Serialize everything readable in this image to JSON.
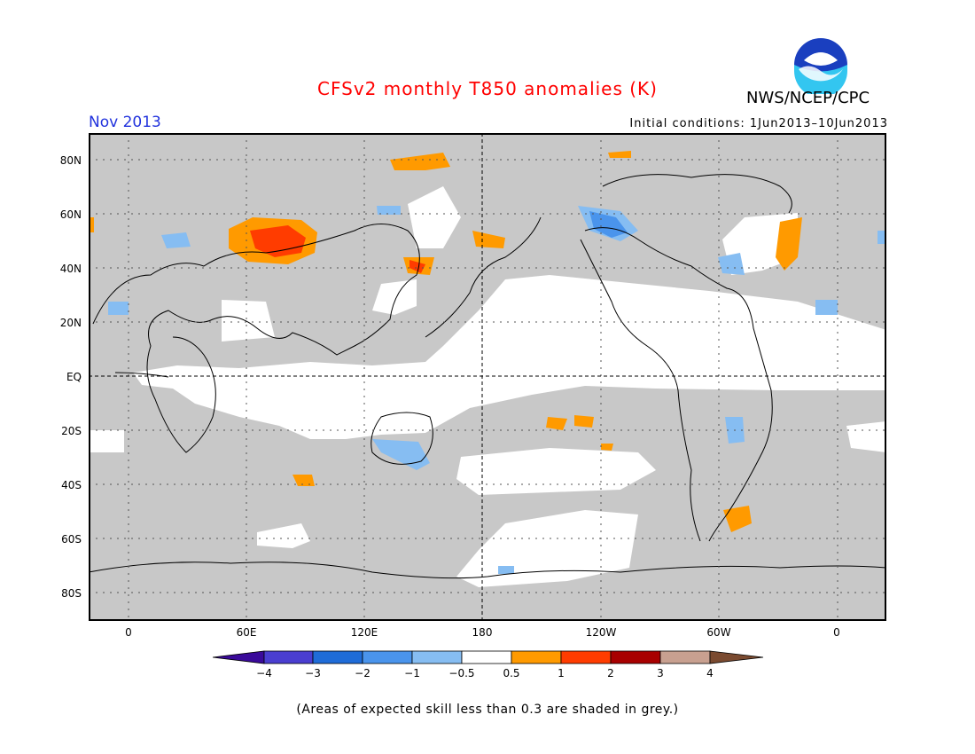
{
  "title": "CFSv2 monthly T850 anomalies (K)",
  "organization": "NWS/NCEP/CPC",
  "logo_text": "NOAA",
  "month": "Nov 2013",
  "initial_conditions": "Initial conditions: 1Jun2013–10Jun2013",
  "lat_labels": [
    "80N",
    "60N",
    "40N",
    "20N",
    "EQ",
    "20S",
    "40S",
    "60S",
    "80S"
  ],
  "lon_labels": [
    "0",
    "60E",
    "120E",
    "180",
    "120W",
    "60W",
    "0"
  ],
  "colorbar": {
    "labels": [
      "−4",
      "−3",
      "−2",
      "−1",
      "−0.5",
      "0.5",
      "1",
      "2",
      "3",
      "4"
    ],
    "colors": [
      "#3a0a9a",
      "#4a3ed0",
      "#1f6cd8",
      "#4a94ec",
      "#86bdf2",
      "#ffffff",
      "#ff9a00",
      "#ff3c00",
      "#a80000",
      "#c8a090",
      "#7a4a30"
    ]
  },
  "note": "(Areas of expected skill less than 0.3 are shaded in grey.)",
  "colors": {
    "title": "#ff0000",
    "month": "#2233dd",
    "grey_mask": "#c8c8c8",
    "warm": "#ff9a00",
    "warm_strong": "#ff3c00",
    "cool": "#86bdf2",
    "cool_strong": "#4a94ec"
  }
}
